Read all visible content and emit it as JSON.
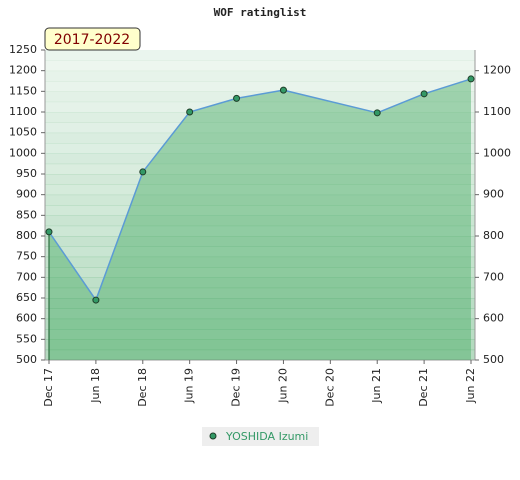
{
  "chart_data": {
    "type": "line",
    "title": "WOF ratinglist",
    "period_label": "2017-2022",
    "categories": [
      "Dec 17",
      "Jun 18",
      "Dec 18",
      "Jun 19",
      "Dec 19",
      "Jun 20",
      "Dec 20",
      "Jun 21",
      "Dec 21",
      "Jun 22"
    ],
    "series": [
      {
        "name": "YOSHIDA Izumi",
        "color": "#339966",
        "line_color": "#5b9bd5",
        "values": [
          810,
          645,
          955,
          1100,
          1133,
          1153,
          null,
          1098,
          1144,
          1180
        ]
      }
    ],
    "ylim": [
      500,
      1250
    ],
    "yticks": [
      500,
      550,
      600,
      650,
      700,
      750,
      800,
      850,
      900,
      950,
      1000,
      1050,
      1100,
      1150,
      1200,
      1250
    ],
    "y2lim": [
      500,
      1250
    ],
    "y2ticks": [
      500,
      600,
      700,
      800,
      900,
      1000,
      1100,
      1200
    ]
  }
}
